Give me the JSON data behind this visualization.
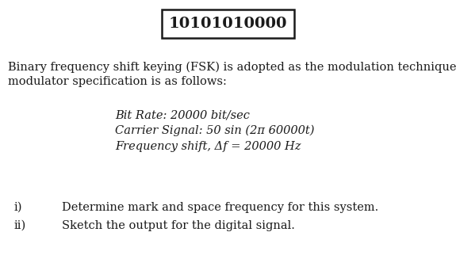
{
  "title_text": "10101010000",
  "title_fontsize": 14,
  "title_fontweight": "bold",
  "bg_color": "#ffffff",
  "text_color": "#1a1a1a",
  "para1_line1": "Binary frequency shift keying (FSK) is adopted as the modulation technique. The FSK",
  "para1_line2": "modulator specification is as follows:",
  "spec1": "Bit Rate: 20000 bit/sec",
  "spec2": "Carrier Signal: 50 sin (2π 60000t)",
  "spec3": "Frequency shift, Δf = 20000 Hz",
  "item_i": "i)",
  "item_ii": "ii)",
  "item_i_text": "Determine mark and space frequency for this system.",
  "item_ii_text": "Sketch the output for the digital signal.",
  "body_fontsize": 10.5,
  "spec_fontsize": 10.5,
  "figsize": [
    5.75,
    3.22
  ],
  "dpi": 100
}
